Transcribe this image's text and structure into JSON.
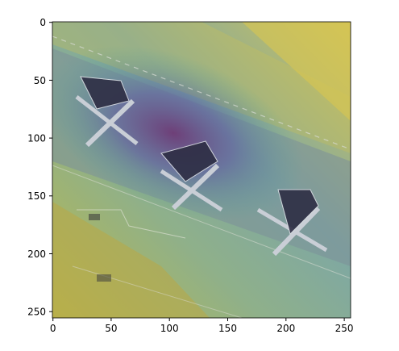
{
  "figure": {
    "axes": {
      "x_ticks": [
        "0",
        "50",
        "100",
        "150",
        "200",
        "250"
      ],
      "y_ticks": [
        "0",
        "50",
        "100",
        "150",
        "200",
        "250"
      ],
      "xlim": [
        -0.5,
        255.5
      ],
      "ylim": [
        255.5,
        -0.5
      ],
      "grid": false
    },
    "image": {
      "description_colors": {
        "heatmap_low": "#d9c645",
        "heatmap_mid": "#5aa6a0",
        "heatmap_high": "#6b3a78",
        "tarmac": "#9aa3a8"
      },
      "objects": [
        "aircraft-1",
        "aircraft-2",
        "aircraft-3"
      ]
    }
  }
}
